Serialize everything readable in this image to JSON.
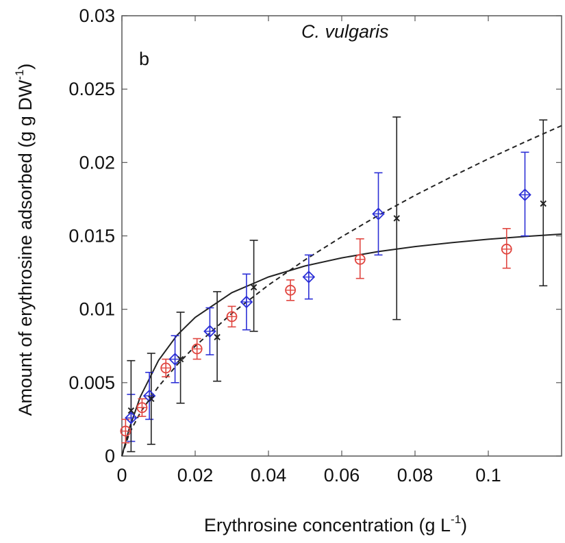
{
  "chart_data": {
    "type": "scatter",
    "panel_label": "b",
    "species_label": "C. vulgaris",
    "xlabel": {
      "main": "Erythrosine concentration (g L",
      "sup": "-1",
      "tail": ")"
    },
    "ylabel": {
      "main": "Amount of erythrosine adsorbed (g g DW",
      "sup": "-1",
      "tail": ")"
    },
    "xlim": [
      0,
      0.12
    ],
    "ylim": [
      0,
      0.03
    ],
    "x_ticks": [
      {
        "v": 0,
        "label": "0"
      },
      {
        "v": 0.02,
        "label": "0.02"
      },
      {
        "v": 0.04,
        "label": "0.04"
      },
      {
        "v": 0.06,
        "label": "0.06"
      },
      {
        "v": 0.08,
        "label": "0.08"
      },
      {
        "v": 0.1,
        "label": "0.1"
      }
    ],
    "y_ticks": [
      {
        "v": 0,
        "label": "0"
      },
      {
        "v": 0.005,
        "label": "0.005"
      },
      {
        "v": 0.01,
        "label": "0.01"
      },
      {
        "v": 0.015,
        "label": "0.015"
      },
      {
        "v": 0.02,
        "label": "0.02"
      },
      {
        "v": 0.025,
        "label": "0.025"
      },
      {
        "v": 0.03,
        "label": "0.03"
      }
    ],
    "grid": false,
    "series": [
      {
        "marker": "circle",
        "color": "#e0453f",
        "points": [
          {
            "x": 0.001,
            "y": 0.0017,
            "lo": 0.0009,
            "hi": 0.0025
          },
          {
            "x": 0.0055,
            "y": 0.0033,
            "lo": 0.0027,
            "hi": 0.0039
          },
          {
            "x": 0.012,
            "y": 0.006,
            "lo": 0.0054,
            "hi": 0.0066
          },
          {
            "x": 0.0205,
            "y": 0.0073,
            "lo": 0.0066,
            "hi": 0.008
          },
          {
            "x": 0.03,
            "y": 0.0095,
            "lo": 0.0088,
            "hi": 0.0102
          },
          {
            "x": 0.046,
            "y": 0.0113,
            "lo": 0.0106,
            "hi": 0.012
          },
          {
            "x": 0.065,
            "y": 0.0134,
            "lo": 0.0121,
            "hi": 0.0148
          },
          {
            "x": 0.105,
            "y": 0.0141,
            "lo": 0.0128,
            "hi": 0.0155
          }
        ]
      },
      {
        "marker": "diamond-plus",
        "color": "#2b2fd6",
        "points": [
          {
            "x": 0.0025,
            "y": 0.0026,
            "lo": 0.001,
            "hi": 0.0042
          },
          {
            "x": 0.0075,
            "y": 0.0041,
            "lo": 0.0025,
            "hi": 0.0057
          },
          {
            "x": 0.0145,
            "y": 0.0066,
            "lo": 0.005,
            "hi": 0.0082
          },
          {
            "x": 0.024,
            "y": 0.0085,
            "lo": 0.0069,
            "hi": 0.0101
          },
          {
            "x": 0.034,
            "y": 0.0105,
            "lo": 0.0086,
            "hi": 0.0124
          },
          {
            "x": 0.051,
            "y": 0.0122,
            "lo": 0.0107,
            "hi": 0.0137
          },
          {
            "x": 0.07,
            "y": 0.0165,
            "lo": 0.0137,
            "hi": 0.0193
          },
          {
            "x": 0.11,
            "y": 0.0178,
            "lo": 0.015,
            "hi": 0.0207
          }
        ]
      },
      {
        "marker": "x",
        "color": "#222222",
        "points": [
          {
            "x": 0.0025,
            "y": 0.0031,
            "lo": 0.0003,
            "hi": 0.0065
          },
          {
            "x": 0.008,
            "y": 0.0039,
            "lo": 0.0008,
            "hi": 0.007
          },
          {
            "x": 0.016,
            "y": 0.0066,
            "lo": 0.0036,
            "hi": 0.0098
          },
          {
            "x": 0.026,
            "y": 0.0081,
            "lo": 0.0051,
            "hi": 0.0112
          },
          {
            "x": 0.036,
            "y": 0.0115,
            "lo": 0.0085,
            "hi": 0.0147
          },
          {
            "x": 0.075,
            "y": 0.0162,
            "lo": 0.0093,
            "hi": 0.0231
          },
          {
            "x": 0.115,
            "y": 0.0172,
            "lo": 0.0116,
            "hi": 0.0229
          }
        ]
      }
    ],
    "fit_curves": [
      {
        "style": "solid",
        "color": "#222222",
        "x": [
          0,
          0.002,
          0.005,
          0.01,
          0.015,
          0.02,
          0.03,
          0.04,
          0.05,
          0.06,
          0.07,
          0.08,
          0.09,
          0.1,
          0.11,
          0.12
        ],
        "y": [
          0,
          0.00187,
          0.00403,
          0.00652,
          0.00822,
          0.00945,
          0.01113,
          0.0122,
          0.01295,
          0.0135,
          0.01393,
          0.01427,
          0.01454,
          0.01477,
          0.01496,
          0.01512
        ]
      },
      {
        "style": "dashed",
        "color": "#222222",
        "x": [
          0,
          0.002,
          0.005,
          0.01,
          0.015,
          0.02,
          0.03,
          0.04,
          0.05,
          0.06,
          0.07,
          0.08,
          0.09,
          0.1,
          0.11,
          0.12
        ],
        "y": [
          0,
          0.00153,
          0.00296,
          0.00474,
          0.0062,
          0.00749,
          0.00972,
          0.01165,
          0.01337,
          0.01494,
          0.0164,
          0.01776,
          0.01903,
          0.02025,
          0.0214,
          0.02251
        ]
      }
    ]
  }
}
